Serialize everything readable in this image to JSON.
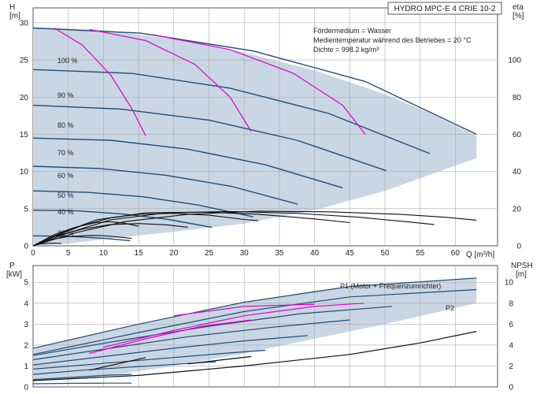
{
  "chart_data": [
    {
      "type": "line",
      "title": "HYDRO MPC-E 4 CRIE 10-2",
      "info_lines": [
        "Fördermedium = Wasser",
        "Medientemperatur während des Betriebes = 20 °C",
        "Dichte = 998.2 kg/m³"
      ],
      "ylabel": "H",
      "yunit": "[m]",
      "y2label": "eta",
      "y2unit": "[%]",
      "xlabel": "Q [m³/h]",
      "xlim": [
        0,
        66
      ],
      "ylim": [
        0,
        32
      ],
      "y2lim": [
        0,
        128
      ],
      "xticks": [
        0,
        5,
        10,
        15,
        20,
        25,
        30,
        35,
        40,
        45,
        50,
        55,
        60
      ],
      "yticks": [
        0,
        5,
        10,
        15,
        20,
        25,
        30
      ],
      "y2ticks": [
        0,
        20,
        40,
        60,
        80,
        100
      ],
      "speed_labels": [
        "100 %",
        "90 %",
        "80 %",
        "70 %",
        "60 %",
        "50 %",
        "40 %",
        "21 %"
      ],
      "speed_label_heads": [
        29.3,
        23.9,
        19.0,
        14.6,
        10.9,
        7.6,
        4.9,
        1.4
      ],
      "envelope": {
        "q": [
          0,
          3,
          10,
          20,
          30,
          40,
          50,
          56,
          60,
          63,
          63,
          60,
          50,
          40,
          30,
          20,
          10,
          5,
          2,
          0
        ],
        "h": [
          29.3,
          29.3,
          29.0,
          27.8,
          26.0,
          23.6,
          20.4,
          18.0,
          16.2,
          14.8,
          11.8,
          10.8,
          7.4,
          4.8,
          3.0,
          1.9,
          0.9,
          0.3,
          0.05,
          0
        ]
      },
      "series": [
        {
          "kind": "qh",
          "points": [
            [
              0,
              29.3
            ],
            [
              15.3,
              28.6
            ],
            [
              31.3,
              26.2
            ],
            [
              47.2,
              22.1
            ],
            [
              63,
              15.0
            ]
          ]
        },
        {
          "kind": "qh",
          "points": [
            [
              0,
              23.7
            ],
            [
              14,
              23.2
            ],
            [
              28,
              21.2
            ],
            [
              42,
              17.8
            ],
            [
              56.4,
              12.4
            ]
          ]
        },
        {
          "kind": "qh",
          "points": [
            [
              0,
              18.9
            ],
            [
              12.5,
              18.4
            ],
            [
              25,
              16.9
            ],
            [
              37.5,
              14.2
            ],
            [
              50.2,
              10.1
            ]
          ]
        },
        {
          "kind": "qh",
          "points": [
            [
              0,
              14.5
            ],
            [
              11,
              14.2
            ],
            [
              22,
              13.0
            ],
            [
              33,
              10.9
            ],
            [
              44,
              7.8
            ]
          ]
        },
        {
          "kind": "qh",
          "points": [
            [
              0,
              10.7
            ],
            [
              9.4,
              10.4
            ],
            [
              18.8,
              9.5
            ],
            [
              28.2,
              8.0
            ],
            [
              37.6,
              5.6
            ]
          ]
        },
        {
          "kind": "qh",
          "points": [
            [
              0,
              7.4
            ],
            [
              7.8,
              7.2
            ],
            [
              15.6,
              6.6
            ],
            [
              23.4,
              5.5
            ],
            [
              31.3,
              3.9
            ]
          ]
        },
        {
          "kind": "qh",
          "points": [
            [
              0,
              4.8
            ],
            [
              6.3,
              4.7
            ],
            [
              12.6,
              4.3
            ],
            [
              18.9,
              3.6
            ],
            [
              25.4,
              2.5
            ]
          ]
        },
        {
          "kind": "qh",
          "points": [
            [
              0,
              1.35
            ],
            [
              3.4,
              1.3
            ],
            [
              6.8,
              1.2
            ],
            [
              10.2,
              1.0
            ],
            [
              13.8,
              0.7
            ]
          ]
        },
        {
          "kind": "limit",
          "points": [
            [
              3,
              29.3
            ],
            [
              7,
              27.0
            ],
            [
              11,
              23.0
            ],
            [
              14,
              18.5
            ],
            [
              16,
              14.8
            ]
          ]
        },
        {
          "kind": "limit",
          "points": [
            [
              8,
              29.1
            ],
            [
              16,
              27.6
            ],
            [
              23,
              24.4
            ],
            [
              28,
              20.0
            ],
            [
              31,
              15.4
            ]
          ]
        },
        {
          "kind": "limit",
          "points": [
            [
              17,
              28.4
            ],
            [
              28,
              26.4
            ],
            [
              37,
              23.2
            ],
            [
              44,
              18.9
            ],
            [
              47.2,
              15.0
            ]
          ]
        },
        {
          "kind": "eta",
          "points": [
            [
              0,
              0
            ],
            [
              3,
              5
            ],
            [
              7,
              11
            ],
            [
              11,
              15
            ],
            [
              15,
              17
            ],
            [
              20,
              17.5
            ],
            [
              25,
              16.5
            ],
            [
              30,
              14.2
            ],
            [
              32,
              13.5
            ]
          ]
        },
        {
          "kind": "eta",
          "points": [
            [
              0,
              0
            ],
            [
              4,
              7
            ],
            [
              9,
              14
            ],
            [
              16,
              17.8
            ],
            [
              24,
              18.2
            ],
            [
              32,
              17.0
            ],
            [
              40,
              14.5
            ],
            [
              45,
              12.5
            ]
          ]
        },
        {
          "kind": "eta",
          "points": [
            [
              0,
              0
            ],
            [
              5,
              7
            ],
            [
              11,
              14
            ],
            [
              19,
              17.8
            ],
            [
              28,
              18.5
            ],
            [
              37,
              17.6
            ],
            [
              46,
              15.5
            ],
            [
              53,
              13.0
            ],
            [
              57,
              11.5
            ]
          ]
        },
        {
          "kind": "eta",
          "points": [
            [
              0,
              0
            ],
            [
              6,
              7
            ],
            [
              13,
              13
            ],
            [
              22,
              17.0
            ],
            [
              32,
              18.6
            ],
            [
              42,
              18.3
            ],
            [
              52,
              17.0
            ],
            [
              59,
              15.3
            ],
            [
              63,
              13.8
            ]
          ]
        },
        {
          "kind": "eta",
          "points": [
            [
              0,
              0
            ],
            [
              3,
              6
            ],
            [
              6,
              10
            ],
            [
              9,
              12.6
            ],
            [
              11,
              13.0
            ],
            [
              13,
              12.2
            ],
            [
              15,
              10.5
            ]
          ]
        },
        {
          "kind": "eta",
          "points": [
            [
              0,
              0
            ],
            [
              3,
              5
            ],
            [
              7,
              9
            ],
            [
              11,
              11.5
            ],
            [
              15,
              12.0
            ],
            [
              19,
              11.3
            ],
            [
              22,
              10.0
            ]
          ]
        },
        {
          "kind": "eta",
          "points": [
            [
              0,
              0
            ],
            [
              2,
              3
            ],
            [
              5,
              5
            ],
            [
              8,
              5.6
            ],
            [
              10,
              5.5
            ],
            [
              12,
              4.8
            ],
            [
              14,
              4.0
            ]
          ]
        },
        {
          "kind": "eta",
          "points": [
            [
              0,
              0
            ],
            [
              1,
              1.0
            ],
            [
              2,
              1.4
            ],
            [
              3,
              1.5
            ],
            [
              4,
              1.3
            ]
          ]
        }
      ]
    },
    {
      "type": "line",
      "ylabel": "P",
      "yunit": "[kW]",
      "y2label": "NPSH",
      "y2unit": "[m]",
      "xlim": [
        0,
        66
      ],
      "ylim": [
        0,
        5.8
      ],
      "y2lim": [
        0,
        11.6
      ],
      "yticks": [
        0,
        1,
        2,
        3,
        4,
        5
      ],
      "y2ticks": [
        0,
        2,
        4,
        6,
        8,
        10
      ],
      "annotations": [
        "P1 (Motor + Frequenzumrichter)",
        "P2"
      ],
      "envelope": {
        "q": [
          0,
          10,
          20,
          30,
          40,
          50,
          63,
          63,
          50,
          40,
          30,
          20,
          10,
          0
        ],
        "p": [
          1.85,
          2.6,
          3.35,
          4.05,
          4.6,
          4.95,
          5.2,
          4.0,
          3.0,
          2.3,
          1.6,
          1.0,
          0.5,
          0.3
        ]
      },
      "series": [
        {
          "kind": "p1",
          "points": [
            [
              0,
              1.85
            ],
            [
              15,
              3.0
            ],
            [
              30,
              4.05
            ],
            [
              45,
              4.8
            ],
            [
              63,
              5.2
            ]
          ]
        },
        {
          "kind": "p2",
          "points": [
            [
              0,
              1.55
            ],
            [
              15,
              2.6
            ],
            [
              30,
              3.6
            ],
            [
              45,
              4.3
            ],
            [
              63,
              4.65
            ]
          ]
        },
        {
          "kind": "p",
          "points": [
            [
              0,
              1.5
            ],
            [
              12,
              2.2
            ],
            [
              25,
              2.9
            ],
            [
              38,
              3.5
            ],
            [
              51,
              3.85
            ]
          ]
        },
        {
          "kind": "p",
          "points": [
            [
              0,
              1.3
            ],
            [
              11,
              1.85
            ],
            [
              22,
              2.4
            ],
            [
              34,
              2.85
            ],
            [
              45,
              3.2
            ]
          ]
        },
        {
          "kind": "p",
          "points": [
            [
              0,
              1.05
            ],
            [
              10,
              1.45
            ],
            [
              20,
              1.85
            ],
            [
              30,
              2.2
            ],
            [
              39,
              2.45
            ]
          ]
        },
        {
          "kind": "p",
          "points": [
            [
              0,
              0.85
            ],
            [
              9,
              1.1
            ],
            [
              18,
              1.35
            ],
            [
              27,
              1.6
            ],
            [
              33,
              1.75
            ]
          ]
        },
        {
          "kind": "p",
          "points": [
            [
              0,
              0.6
            ],
            [
              7,
              0.8
            ],
            [
              14,
              0.95
            ],
            [
              21,
              1.1
            ],
            [
              26,
              1.2
            ]
          ]
        },
        {
          "kind": "p",
          "points": [
            [
              0,
              0.35
            ],
            [
              5,
              0.45
            ],
            [
              10,
              0.55
            ],
            [
              14,
              0.6
            ]
          ]
        },
        {
          "kind": "p",
          "points": [
            [
              0,
              0.15
            ],
            [
              5,
              0.17
            ],
            [
              10,
              0.18
            ],
            [
              14,
              0.18
            ]
          ]
        },
        {
          "kind": "pm",
          "points": [
            [
              10,
              1.9
            ],
            [
              20,
              2.7
            ],
            [
              30,
              3.4
            ],
            [
              40,
              3.85
            ],
            [
              47,
              4.0
            ]
          ]
        },
        {
          "kind": "pm",
          "points": [
            [
              8,
              1.6
            ],
            [
              16,
              2.3
            ],
            [
              24,
              2.9
            ],
            [
              31,
              3.2
            ]
          ]
        },
        {
          "kind": "pm",
          "points": [
            [
              20,
              3.4
            ],
            [
              30,
              3.85
            ],
            [
              40,
              3.95
            ]
          ]
        },
        {
          "kind": "npsh",
          "points": [
            [
              0,
              0.6
            ],
            [
              15,
              1.1
            ],
            [
              30,
              2.0
            ],
            [
              45,
              3.1
            ],
            [
              55,
              4.2
            ],
            [
              63,
              5.3
            ]
          ]
        },
        {
          "kind": "npsh",
          "points": [
            [
              8,
              1.6
            ],
            [
              12,
              2.2
            ],
            [
              16,
              2.8
            ]
          ]
        },
        {
          "kind": "npsh",
          "points": [
            [
              22,
              2.2
            ],
            [
              27,
              2.6
            ],
            [
              31,
              2.9
            ]
          ]
        }
      ]
    }
  ]
}
